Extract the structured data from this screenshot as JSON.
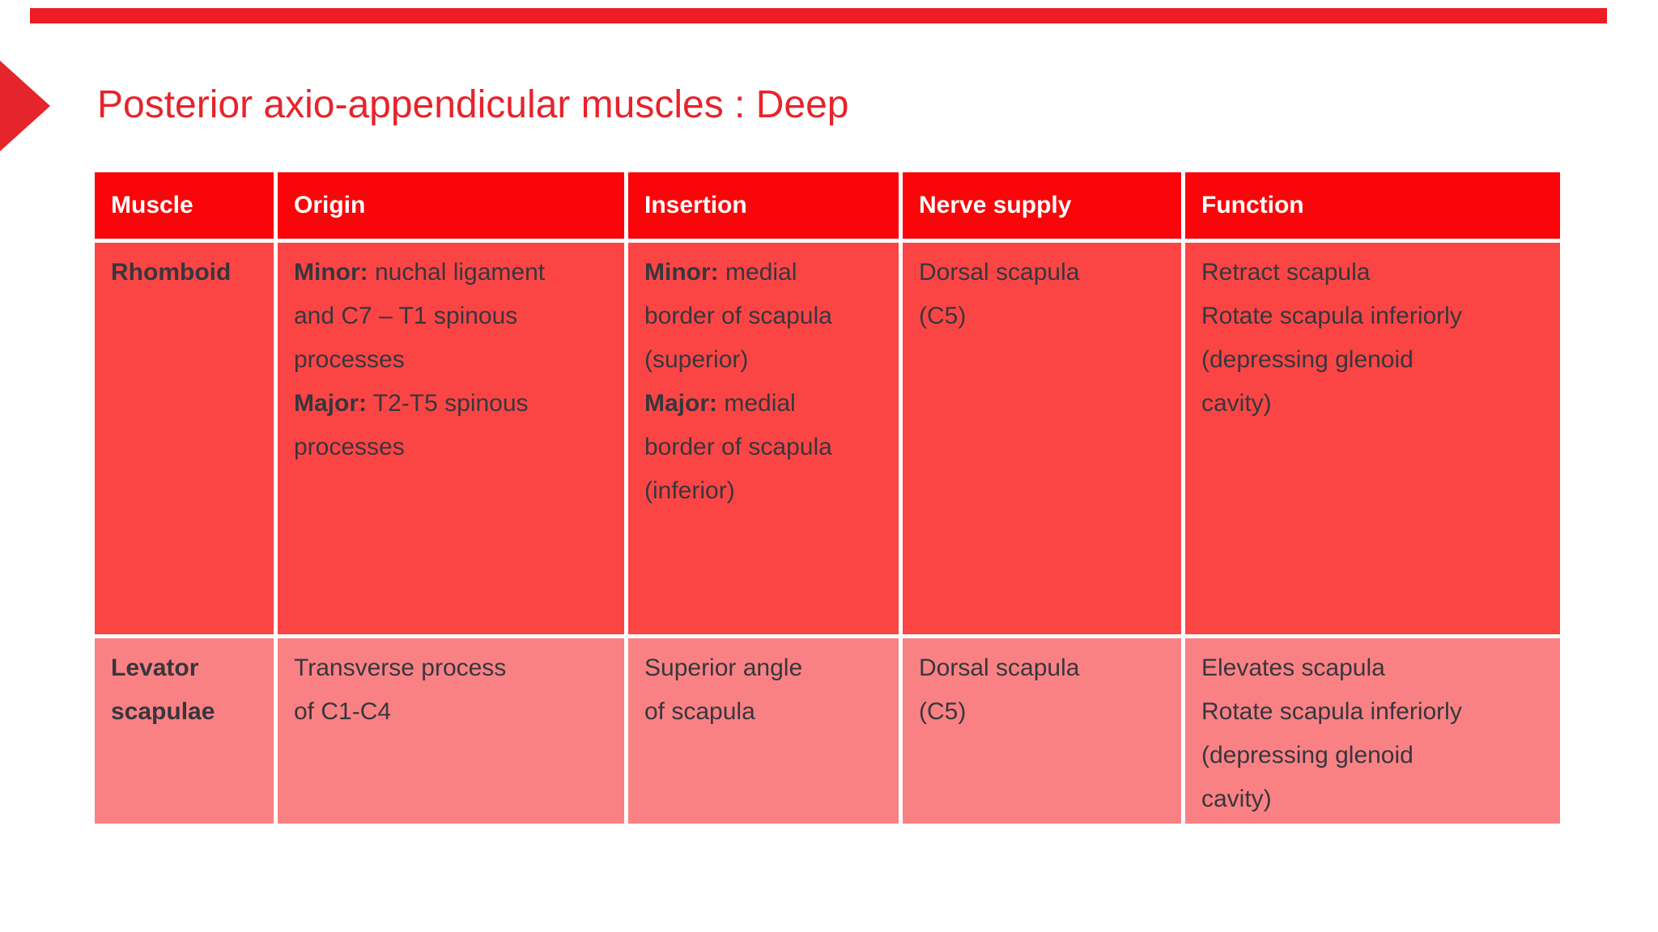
{
  "title": "Posterior axio-appendicular muscles : Deep",
  "icons": {
    "title_arrow": "right-triangle-bullet"
  },
  "colors": {
    "page_bg": "#ffffff",
    "accent_bar": "#ee1c24",
    "title_color": "#e6242b",
    "header_bg": "#fa0509",
    "header_text": "#ffffff",
    "row1_bg": "#fb4545",
    "row2_bg": "#f98184",
    "body_text": "#38363d"
  },
  "table": {
    "headers": [
      "Muscle",
      "Origin",
      "Insertion",
      "Nerve supply",
      "Function"
    ],
    "column_keys": [
      "origin",
      "insertion",
      "nerve_supply",
      "function"
    ],
    "rows": [
      {
        "muscle": "Rhomboid",
        "cells": {
          "origin": [
            {
              "b": "Minor:",
              "t": "nuchal ligament\nand C7 – T1 spinous\nprocesses"
            },
            {
              "b": "Major:",
              "t": "T2-T5 spinous\nprocesses"
            }
          ],
          "insertion": [
            {
              "b": "Minor:",
              "t": "medial\nborder of scapula\n(superior)"
            },
            {
              "b": "Major:",
              "t": "medial\nborder of scapula\n(inferior)"
            }
          ],
          "nerve_supply": [
            {
              "t": "Dorsal scapula\n(C5)"
            }
          ],
          "function": [
            {
              "t": "Retract scapula"
            },
            {
              "t": "Rotate scapula inferiorly\n(depressing glenoid\ncavity)"
            }
          ]
        }
      },
      {
        "muscle": "Levator\nscapulae",
        "cells": {
          "origin": [
            {
              "t": "Transverse process\nof C1-C4"
            }
          ],
          "insertion": [
            {
              "t": "Superior angle\nof scapula"
            }
          ],
          "nerve_supply": [
            {
              "t": "Dorsal scapula\n(C5)"
            }
          ],
          "function": [
            {
              "t": "Elevates scapula"
            },
            {
              "t": "Rotate scapula inferiorly\n(depressing glenoid\ncavity)"
            }
          ]
        }
      }
    ]
  }
}
